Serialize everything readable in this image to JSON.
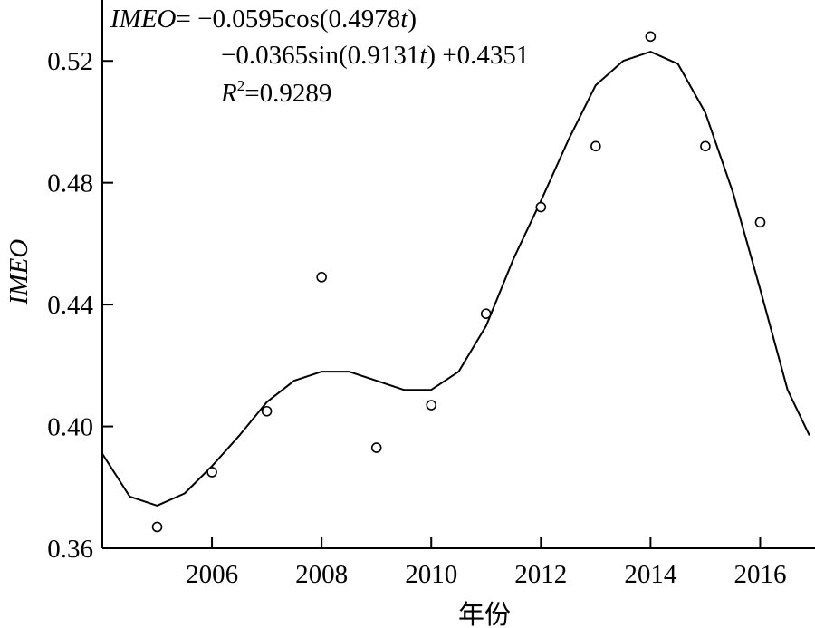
{
  "chart_data": {
    "type": "scatter",
    "title": "",
    "xlabel": "年份",
    "ylabel": "IMEO",
    "xlim": [
      2004,
      2017
    ],
    "ylim": [
      0.36,
      0.54
    ],
    "x_ticks": [
      2006,
      2008,
      2010,
      2012,
      2014,
      2016
    ],
    "y_ticks": [
      0.36,
      0.4,
      0.44,
      0.48,
      0.52
    ],
    "x_tick_labels": [
      "2006",
      "2008",
      "2010",
      "2012",
      "2014",
      "2016"
    ],
    "y_tick_labels": [
      "0.36",
      "0.40",
      "0.44",
      "0.48",
      "0.52"
    ],
    "grid": false,
    "series": [
      {
        "type": "scatter",
        "marker": "open-circle",
        "x": [
          2005,
          2006,
          2007,
          2008,
          2009,
          2010,
          2011,
          2012,
          2013,
          2014,
          2015,
          2016
        ],
        "y": [
          0.367,
          0.385,
          0.405,
          0.449,
          0.393,
          0.407,
          0.437,
          0.472,
          0.492,
          0.528,
          0.492,
          0.467
        ]
      },
      {
        "type": "line",
        "x": [
          2004.0,
          2004.5,
          2005.0,
          2005.5,
          2006.0,
          2006.5,
          2007.0,
          2007.5,
          2008.0,
          2008.5,
          2009.0,
          2009.5,
          2010.0,
          2010.5,
          2011.0,
          2011.5,
          2012.0,
          2012.5,
          2013.0,
          2013.5,
          2014.0,
          2014.5,
          2015.0,
          2015.5,
          2016.0,
          2016.5,
          2016.9
        ],
        "y": [
          0.391,
          0.377,
          0.374,
          0.378,
          0.387,
          0.397,
          0.408,
          0.415,
          0.418,
          0.418,
          0.415,
          0.412,
          0.412,
          0.418,
          0.433,
          0.455,
          0.474,
          0.494,
          0.512,
          0.52,
          0.523,
          0.519,
          0.503,
          0.477,
          0.445,
          0.412,
          0.397
        ]
      }
    ],
    "annotation": {
      "line1_label": "IMEO",
      "line1_rest": "= −0.0595cos(0.4978",
      "t": "t",
      "close": ")",
      "line2_start": "−0.0365sin(0.9131",
      "line2_end": ") +0.4351",
      "r_letter": "R",
      "r_sup": "2",
      "r_value": "=0.9289"
    }
  }
}
